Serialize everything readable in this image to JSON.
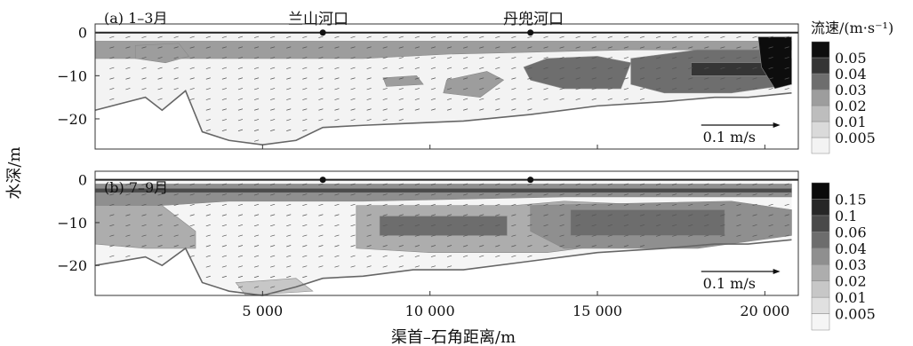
{
  "figure": {
    "y_axis_label": "水深/m",
    "x_axis_label": "渠首–石角距离/m",
    "landmarks": [
      {
        "label": "兰山河口",
        "x": 6800
      },
      {
        "label": "丹兜河口",
        "x": 13000
      }
    ],
    "legend_title": "流速/(m·s⁻¹)"
  },
  "chart_data": [
    {
      "type": "heatmap",
      "panel_label": "(a) 1–3月",
      "x_range": [
        0,
        21000
      ],
      "y_range": [
        -27,
        2
      ],
      "x_ticks": [
        5000,
        10000,
        15000,
        20000
      ],
      "x_tick_labels": [
        "5 000",
        "10 000",
        "15 000",
        "20 000"
      ],
      "y_ticks": [
        0,
        -10,
        -20
      ],
      "y_tick_labels": [
        "0",
        "−10",
        "−20"
      ],
      "reference_vector_label": "0.1 m/s",
      "colorbar": {
        "levels": [
          0.005,
          0.01,
          0.02,
          0.03,
          0.04,
          0.05
        ],
        "labels": [
          "0.005",
          "0.01",
          "0.02",
          "0.03",
          "0.04",
          "0.05"
        ],
        "colors": [
          "#f3f3f3",
          "#dadada",
          "#bdbdbd",
          "#9d9d9d",
          "#6e6e6e",
          "#353535",
          "#0d0d0d"
        ]
      },
      "bottom_profile": [
        [
          0,
          -18
        ],
        [
          1500,
          -15
        ],
        [
          2000,
          -18
        ],
        [
          2700,
          -13.5
        ],
        [
          3200,
          -23
        ],
        [
          4000,
          -25
        ],
        [
          5000,
          -26
        ],
        [
          6000,
          -25
        ],
        [
          6800,
          -22
        ],
        [
          8000,
          -21.5
        ],
        [
          9500,
          -21
        ],
        [
          11000,
          -20.5
        ],
        [
          13000,
          -19
        ],
        [
          15000,
          -17
        ],
        [
          17000,
          -16
        ],
        [
          18500,
          -15
        ],
        [
          19500,
          -15
        ],
        [
          20800,
          -14
        ]
      ],
      "shaded_regions": [
        {
          "level": 0.02,
          "polygon": [
            [
              0,
              -2
            ],
            [
              20800,
              -2
            ],
            [
              20800,
              -4
            ],
            [
              16000,
              -4
            ],
            [
              10500,
              -5
            ],
            [
              8000,
              -6
            ],
            [
              5000,
              -6
            ],
            [
              1500,
              -6
            ],
            [
              0,
              -6
            ]
          ]
        },
        {
          "level": 0.03,
          "polygon": [
            [
              13500,
              -6
            ],
            [
              15000,
              -5.5
            ],
            [
              16000,
              -7
            ],
            [
              15700,
              -13
            ],
            [
              14000,
              -13
            ],
            [
              13000,
              -11
            ],
            [
              12800,
              -8
            ]
          ]
        },
        {
          "level": 0.03,
          "polygon": [
            [
              16000,
              -6
            ],
            [
              18000,
              -4
            ],
            [
              20000,
              -4
            ],
            [
              20800,
              -6
            ],
            [
              20800,
              -12
            ],
            [
              19000,
              -14
            ],
            [
              17000,
              -14
            ],
            [
              16000,
              -12
            ]
          ]
        },
        {
          "level": 0.04,
          "polygon": [
            [
              17800,
              -7
            ],
            [
              20300,
              -7
            ],
            [
              20300,
              -10
            ],
            [
              17800,
              -10
            ]
          ]
        },
        {
          "level": 0.02,
          "polygon": [
            [
              10500,
              -11
            ],
            [
              11700,
              -9
            ],
            [
              12200,
              -11
            ],
            [
              11500,
              -15
            ],
            [
              10400,
              -14
            ]
          ]
        },
        {
          "level": 0.02,
          "polygon": [
            [
              8600,
              -10.5
            ],
            [
              9600,
              -10
            ],
            [
              9800,
              -12
            ],
            [
              8700,
              -12.5
            ]
          ]
        },
        {
          "level": 0.02,
          "polygon": [
            [
              1200,
              -3
            ],
            [
              2500,
              -2.5
            ],
            [
              2800,
              -5.5
            ],
            [
              2100,
              -7
            ],
            [
              1200,
              -6
            ]
          ]
        },
        {
          "level": 0.05,
          "polygon": [
            [
              19800,
              -1
            ],
            [
              20800,
              -1
            ],
            [
              20800,
              -12
            ],
            [
              20300,
              -13
            ],
            [
              19900,
              -8
            ]
          ]
        }
      ]
    },
    {
      "type": "heatmap",
      "panel_label": "(b) 7–9月",
      "x_range": [
        0,
        21000
      ],
      "y_range": [
        -27,
        2
      ],
      "x_ticks": [
        5000,
        10000,
        15000,
        20000
      ],
      "x_tick_labels": [
        "5 000",
        "10 000",
        "15 000",
        "20 000"
      ],
      "y_ticks": [
        0,
        -10,
        -20
      ],
      "y_tick_labels": [
        "0",
        "−10",
        "−20"
      ],
      "reference_vector_label": "0.1 m/s",
      "colorbar": {
        "levels": [
          0.005,
          0.01,
          0.02,
          0.03,
          0.04,
          0.06,
          0.1,
          0.15
        ],
        "labels": [
          "0.005",
          "0.01",
          "0.02",
          "0.03",
          "0.04",
          "0.06",
          "0.1",
          "0.15"
        ],
        "colors": [
          "#f5f5f5",
          "#e0e0e0",
          "#c7c7c7",
          "#adadad",
          "#8f8f8f",
          "#6d6d6d",
          "#4a4a4a",
          "#272727",
          "#0a0a0a"
        ]
      },
      "bottom_profile": [
        [
          0,
          -20
        ],
        [
          1500,
          -18
        ],
        [
          2000,
          -20
        ],
        [
          2700,
          -16
        ],
        [
          3200,
          -24
        ],
        [
          4000,
          -26
        ],
        [
          5000,
          -27
        ],
        [
          6000,
          -25
        ],
        [
          6800,
          -23
        ],
        [
          8000,
          -22.5
        ],
        [
          9500,
          -21
        ],
        [
          11000,
          -21
        ],
        [
          13000,
          -19
        ],
        [
          15000,
          -17
        ],
        [
          17000,
          -16
        ],
        [
          18500,
          -15
        ],
        [
          19500,
          -15
        ],
        [
          20800,
          -14
        ]
      ],
      "shaded_regions": [
        {
          "level": 0.03,
          "polygon": [
            [
              0,
              -1
            ],
            [
              20800,
              -1
            ],
            [
              20800,
              -4
            ],
            [
              14000,
              -4
            ],
            [
              8000,
              -5
            ],
            [
              4000,
              -5
            ],
            [
              2000,
              -6
            ],
            [
              0,
              -6
            ]
          ]
        },
        {
          "level": 0.02,
          "polygon": [
            [
              0,
              -6
            ],
            [
              2000,
              -6
            ],
            [
              3000,
              -12
            ],
            [
              3000,
              -16
            ],
            [
              1500,
              -16
            ],
            [
              0,
              -15
            ]
          ]
        },
        {
          "level": 0.02,
          "polygon": [
            [
              7800,
              -6
            ],
            [
              12500,
              -6
            ],
            [
              14000,
              -5
            ],
            [
              17000,
              -6
            ],
            [
              16500,
              -14
            ],
            [
              13500,
              -17
            ],
            [
              10000,
              -17
            ],
            [
              7800,
              -16
            ]
          ]
        },
        {
          "level": 0.04,
          "polygon": [
            [
              8500,
              -8.5
            ],
            [
              12300,
              -8.5
            ],
            [
              12300,
              -13
            ],
            [
              8500,
              -13
            ]
          ]
        },
        {
          "level": 0.03,
          "polygon": [
            [
              13000,
              -6
            ],
            [
              19000,
              -5
            ],
            [
              20800,
              -7
            ],
            [
              20800,
              -13
            ],
            [
              18000,
              -16
            ],
            [
              14000,
              -16
            ],
            [
              13000,
              -12
            ]
          ]
        },
        {
          "level": 0.04,
          "polygon": [
            [
              14200,
              -7
            ],
            [
              18800,
              -7
            ],
            [
              18800,
              -13
            ],
            [
              14200,
              -13
            ]
          ]
        },
        {
          "level": 0.06,
          "polygon": [
            [
              0,
              -2
            ],
            [
              20800,
              -2
            ],
            [
              20800,
              -3
            ],
            [
              0,
              -3
            ]
          ]
        },
        {
          "level": 0.01,
          "polygon": [
            [
              4200,
              -24
            ],
            [
              6000,
              -23
            ],
            [
              6500,
              -26
            ],
            [
              4500,
              -27
            ]
          ]
        }
      ]
    }
  ]
}
